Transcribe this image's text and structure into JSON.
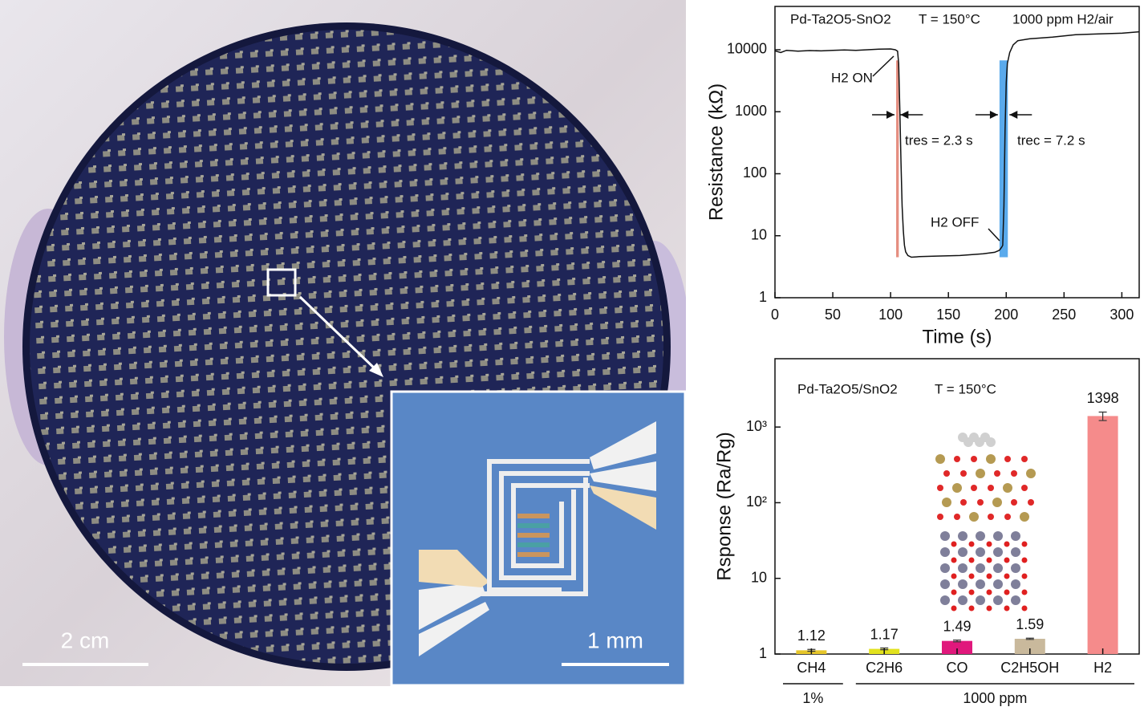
{
  "photo": {
    "scale_bar": "2 cm",
    "inset_scale_bar": "1 mm"
  },
  "chart_data": [
    {
      "type": "line",
      "x_label": "Time (s)",
      "y_label": "Resistance (kΩ)",
      "annotations": {
        "material": "Pd-Ta2O5-SnO2",
        "temperature": "T = 150°C",
        "gas": "1000 ppm H2/air",
        "on": "H2 ON",
        "off": "H2 OFF",
        "response_time": "tres = 2.3 s",
        "recovery_time": "trec = 7.2 s"
      },
      "x": [
        0,
        5,
        10,
        20,
        30,
        40,
        50,
        60,
        70,
        80,
        90,
        100,
        104,
        106,
        107,
        108,
        109,
        110,
        111,
        112,
        113,
        115,
        118,
        125,
        140,
        160,
        180,
        190,
        194,
        196,
        197,
        198,
        199,
        200,
        201,
        203,
        206,
        210,
        220,
        240,
        260,
        280,
        300,
        315
      ],
      "values": [
        9600,
        9000,
        9800,
        9500,
        9700,
        9600,
        9800,
        9900,
        9800,
        10000,
        10200,
        10300,
        10000,
        9500,
        6000,
        1000,
        150,
        30,
        12,
        7,
        5.5,
        4.8,
        4.5,
        4.6,
        4.7,
        4.8,
        5.1,
        5.4,
        5.8,
        6.5,
        7,
        30,
        500,
        3000,
        6000,
        9000,
        12000,
        14000,
        15000,
        16000,
        17500,
        18000,
        18500,
        19500
      ],
      "color": "#111111",
      "bands": [
        {
          "x": [
            104.8,
            107.1
          ],
          "color": "#e07a6a"
        },
        {
          "x": [
            194.2,
            201.4
          ],
          "color": "#3d9be9"
        }
      ],
      "xlim": [
        0,
        315
      ],
      "xticks": [
        0,
        50,
        100,
        150,
        200,
        250,
        300
      ],
      "ylim": [
        1,
        50000
      ],
      "yticks": [
        1,
        10,
        100,
        1000,
        10000
      ],
      "log_y": true
    },
    {
      "type": "bar",
      "y_label": "Rsponse (Ra/Rg)",
      "annotations": {
        "material": "Pd-Ta2O5/SnO2",
        "temperature": "T = 150°C"
      },
      "categories": [
        "CH4",
        "C2H6",
        "CO",
        "C2H5OH",
        "H2"
      ],
      "values": [
        1.12,
        1.17,
        1.49,
        1.59,
        1398
      ],
      "errors": [
        0.03,
        0.03,
        0.04,
        0.03,
        180
      ],
      "colors": [
        "#e6c62a",
        "#e2e21e",
        "#e0187c",
        "#c9b99c",
        "#f58b8b"
      ],
      "groups": [
        {
          "label": "1%",
          "count": 1
        },
        {
          "label": "1000 ppm",
          "count": 4
        }
      ],
      "ylim": [
        1,
        8000
      ],
      "yticks": [
        1,
        10,
        {
          "value": 100,
          "label": "10²"
        },
        {
          "value": 1000,
          "label": "10³"
        }
      ],
      "log_y": true
    }
  ]
}
